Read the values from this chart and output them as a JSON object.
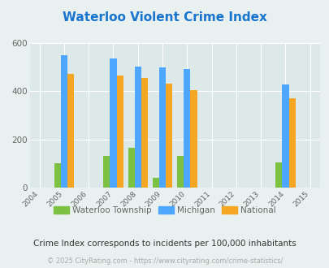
{
  "title": "Waterloo Violent Crime Index",
  "title_color": "#1874cd",
  "subtitle": "Crime Index corresponds to incidents per 100,000 inhabitants",
  "footer": "© 2025 CityRating.com - https://www.cityrating.com/crime-statistics/",
  "years": [
    2005,
    2007,
    2008,
    2009,
    2010,
    2014
  ],
  "waterloo": [
    100,
    130,
    165,
    40,
    130,
    105
  ],
  "michigan": [
    550,
    535,
    500,
    498,
    492,
    428
  ],
  "national": [
    470,
    465,
    455,
    430,
    405,
    370
  ],
  "waterloo_color": "#7dc142",
  "michigan_color": "#4da6ff",
  "national_color": "#f5a623",
  "bg_color": "#e8f0f0",
  "plot_bg": "#dde8e8",
  "ylim": [
    0,
    600
  ],
  "yticks": [
    0,
    200,
    400,
    600
  ],
  "all_years": [
    2004,
    2005,
    2006,
    2007,
    2008,
    2009,
    2010,
    2011,
    2012,
    2013,
    2014,
    2015
  ],
  "bar_width": 0.27,
  "grid_color": "#ffffff",
  "tick_color": "#666666",
  "subtitle_color": "#333333",
  "footer_color": "#aaaaaa",
  "legend_labels": [
    "Waterloo Township",
    "Michigan",
    "National"
  ]
}
